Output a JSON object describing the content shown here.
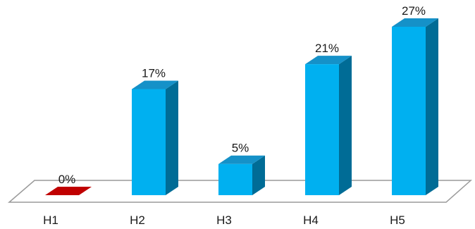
{
  "chart_data": {
    "type": "bar",
    "categories": [
      "H1",
      "H2",
      "H3",
      "H4",
      "H5"
    ],
    "values": [
      0,
      17,
      5,
      21,
      27
    ],
    "value_labels": [
      "0%",
      "17%",
      "5%",
      "21%",
      "27%"
    ],
    "unit": "%",
    "ylim": [
      0,
      27
    ],
    "grid": false,
    "legend": "none",
    "three_d": true,
    "colors": {
      "bar_front": "#00b0f0",
      "bar_top": "#1591c8",
      "bar_side": "#006c96",
      "zero_bar": "#c00000",
      "floor_stroke": "#9a9a9a"
    }
  }
}
